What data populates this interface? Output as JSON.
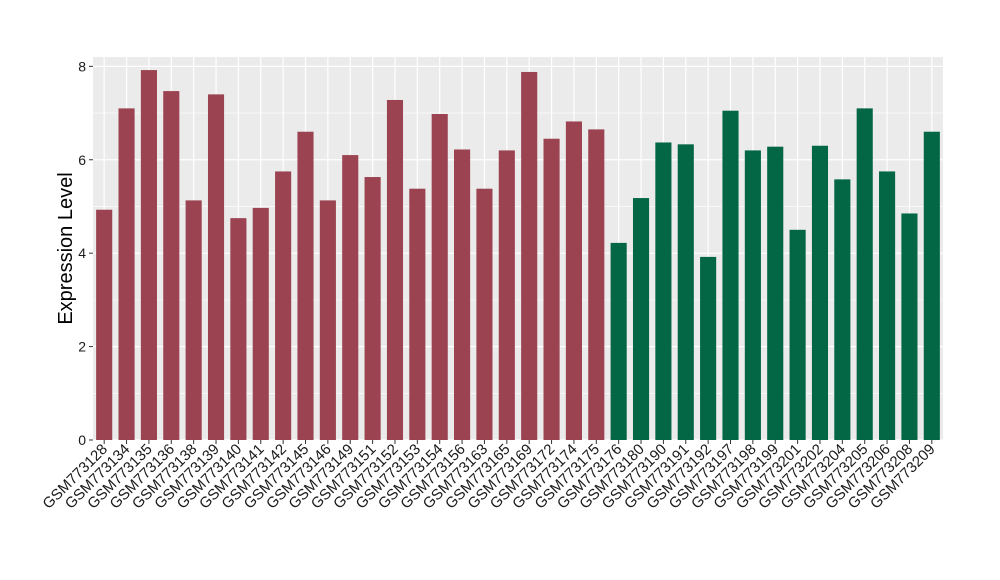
{
  "chart_data": {
    "type": "bar",
    "title": "",
    "xlabel": "",
    "ylabel": "Expression Level",
    "ylim": [
      0,
      8.2
    ],
    "yticks": [
      0,
      2,
      4,
      6,
      8
    ],
    "grid": true,
    "legend": "none",
    "colors": {
      "group1": "#9b4351",
      "group2": "#036644",
      "panel_bg": "#ebebeb",
      "grid": "#ffffff"
    },
    "categories": [
      "GSM773128",
      "GSM773134",
      "GSM773135",
      "GSM773136",
      "GSM773138",
      "GSM773139",
      "GSM773140",
      "GSM773141",
      "GSM773142",
      "GSM773145",
      "GSM773146",
      "GSM773149",
      "GSM773151",
      "GSM773152",
      "GSM773153",
      "GSM773154",
      "GSM773156",
      "GSM773163",
      "GSM773165",
      "GSM773169",
      "GSM773172",
      "GSM773174",
      "GSM773175",
      "GSM773176",
      "GSM773180",
      "GSM773190",
      "GSM773191",
      "GSM773192",
      "GSM773197",
      "GSM773198",
      "GSM773199",
      "GSM773201",
      "GSM773202",
      "GSM773204",
      "GSM773205",
      "GSM773206",
      "GSM773208",
      "GSM773209"
    ],
    "values": [
      4.93,
      7.1,
      7.92,
      7.47,
      5.13,
      7.4,
      4.75,
      4.97,
      5.75,
      6.6,
      5.13,
      6.1,
      5.63,
      7.28,
      5.38,
      6.98,
      6.22,
      5.38,
      6.2,
      7.88,
      6.45,
      6.82,
      6.65,
      4.22,
      5.18,
      6.37,
      6.33,
      3.92,
      7.05,
      6.2,
      6.28,
      4.5,
      6.3,
      5.58,
      7.1,
      5.75,
      4.85,
      6.6
    ],
    "groups": [
      1,
      1,
      1,
      1,
      1,
      1,
      1,
      1,
      1,
      1,
      1,
      1,
      1,
      1,
      1,
      1,
      1,
      1,
      1,
      1,
      1,
      1,
      1,
      2,
      2,
      2,
      2,
      2,
      2,
      2,
      2,
      2,
      2,
      2,
      2,
      2,
      2,
      2
    ]
  }
}
